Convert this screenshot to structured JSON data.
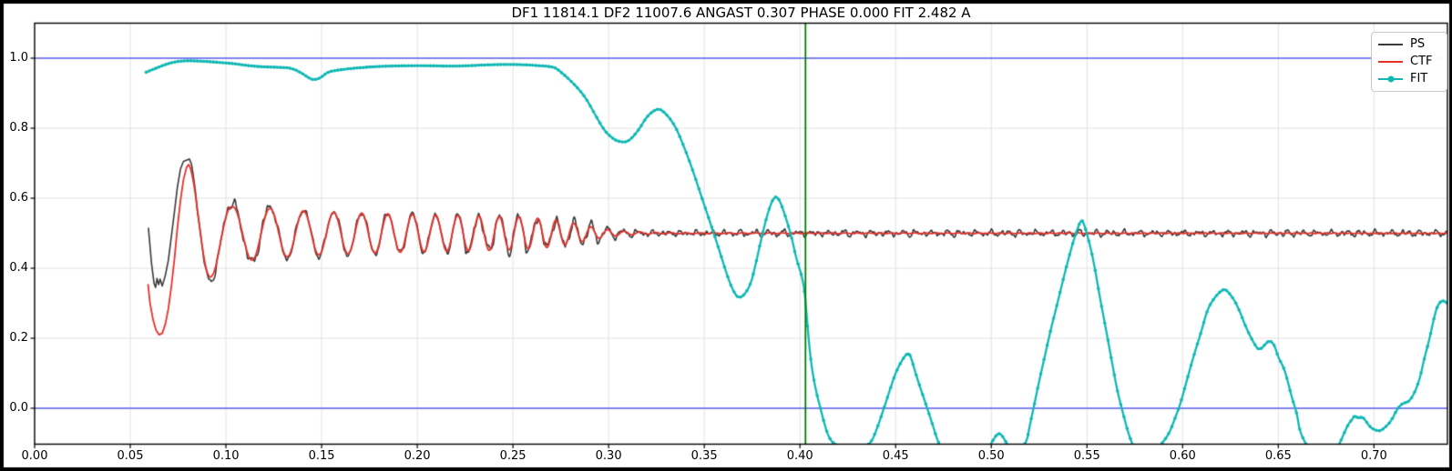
{
  "window": {
    "frame_color": "#000000",
    "background": "#ffffff"
  },
  "legend": {
    "items": [
      {
        "label": "PS",
        "color": "#3b3b3b",
        "marker": false
      },
      {
        "label": "CTF",
        "color": "#e7312a",
        "marker": false
      },
      {
        "label": "FIT",
        "color": "#10b8b4",
        "marker": true
      }
    ]
  },
  "chart_data": {
    "type": "line",
    "title": "DF1 11814.1 DF2 11007.6 ANGAST 0.307 PHASE 0.000 FIT 2.482 A",
    "xlabel": "",
    "ylabel": "",
    "xlim": [
      0,
      0.7384
    ],
    "ylim": [
      -0.1026,
      1.1
    ],
    "grid": true,
    "grid_color": "#e2e2e2",
    "legend_position": "upper right",
    "x_ticks": [
      0.0,
      0.05,
      0.1,
      0.15,
      0.2,
      0.25,
      0.3,
      0.35,
      0.4,
      0.45,
      0.5,
      0.55,
      0.6,
      0.65,
      0.7
    ],
    "x_tick_labels": [
      "0.00",
      "0.05",
      "0.10",
      "0.15",
      "0.20",
      "0.25",
      "0.30",
      "0.35",
      "0.40",
      "0.45",
      "0.50",
      "0.55",
      "0.60",
      "0.65",
      "0.70"
    ],
    "y_ticks": [
      0.0,
      0.2,
      0.4,
      0.6,
      0.8,
      1.0
    ],
    "y_tick_labels": [
      "0.0",
      "0.2",
      "0.4",
      "0.6",
      "0.8",
      "1.0"
    ],
    "reference_lines": {
      "horizontal": [
        {
          "y": 0.0,
          "color": "#8282ef",
          "width": 1.8
        },
        {
          "y": 1.0,
          "color": "#8282ef",
          "width": 1.8
        }
      ],
      "vertical": [
        {
          "x": 0.4029,
          "color": "#007c00",
          "width": 1.8
        }
      ]
    },
    "series": [
      {
        "name": "PS",
        "kind": "ctf_model",
        "color": "#3b3b3b",
        "line_width": 1.6,
        "mean": 0.5,
        "phase_coeffs": [
          -12.95,
          73.0,
          1091
        ],
        "model_range": [
          0.0805,
          0.7384
        ],
        "start_points": [
          [
            0.0595,
            0.514
          ],
          [
            0.0611,
            0.414
          ],
          [
            0.0624,
            0.358
          ],
          [
            0.0632,
            0.345
          ],
          [
            0.064,
            0.371
          ],
          [
            0.0648,
            0.353
          ],
          [
            0.0656,
            0.369
          ],
          [
            0.0667,
            0.349
          ],
          [
            0.0683,
            0.379
          ],
          [
            0.0699,
            0.423
          ],
          [
            0.0715,
            0.492
          ],
          [
            0.0731,
            0.562
          ],
          [
            0.0746,
            0.631
          ],
          [
            0.0762,
            0.683
          ],
          [
            0.0778,
            0.705
          ],
          [
            0.0805,
            0.711
          ]
        ],
        "envelope": [
          [
            0.0805,
            0.211
          ],
          [
            0.0929,
            0.133
          ],
          [
            0.103,
            0.084
          ],
          [
            0.115,
            0.083
          ],
          [
            0.1235,
            0.076
          ],
          [
            0.14,
            0.067
          ],
          [
            0.16,
            0.062
          ],
          [
            0.18,
            0.058
          ],
          [
            0.2,
            0.055
          ],
          [
            0.22,
            0.053
          ],
          [
            0.24,
            0.051
          ],
          [
            0.255,
            0.048
          ],
          [
            0.27,
            0.042
          ],
          [
            0.28,
            0.033
          ],
          [
            0.29,
            0.021
          ],
          [
            0.3,
            0.012
          ],
          [
            0.31,
            0.007
          ],
          [
            0.325,
            0.004
          ],
          [
            0.345,
            0.002
          ],
          [
            0.739,
            0.0015
          ]
        ],
        "noise": {
          "base": 0.008,
          "boosts": [
            [
              0.095,
              0.125,
              0.013
            ],
            [
              0.225,
              0.295,
              0.014
            ]
          ],
          "components": [
            [
              812,
              4.1,
              1.0
            ],
            [
              1382,
              0.9,
              0.75
            ],
            [
              2160,
              2.5,
              0.55
            ],
            [
              3365,
              1.3,
              0.4
            ],
            [
              5230,
              0.2,
              0.22
            ]
          ]
        }
      },
      {
        "name": "CTF",
        "kind": "ctf_model",
        "color": "#e7312a",
        "line_width": 1.8,
        "mean": 0.5,
        "phase_coeffs": [
          -12.95,
          73.0,
          1091
        ],
        "model_range": [
          0.0805,
          0.7384
        ],
        "start_points": [
          [
            0.0593,
            0.353
          ],
          [
            0.0603,
            0.301
          ],
          [
            0.0619,
            0.253
          ],
          [
            0.0635,
            0.223
          ],
          [
            0.0651,
            0.21
          ],
          [
            0.0667,
            0.214
          ],
          [
            0.0683,
            0.24
          ],
          [
            0.0699,
            0.284
          ],
          [
            0.0715,
            0.349
          ],
          [
            0.0731,
            0.427
          ],
          [
            0.0746,
            0.514
          ],
          [
            0.0762,
            0.592
          ],
          [
            0.0778,
            0.653
          ],
          [
            0.0794,
            0.688
          ],
          [
            0.0805,
            0.696
          ]
        ],
        "envelope": [
          [
            0.0805,
            0.196
          ],
          [
            0.0929,
            0.121
          ],
          [
            0.103,
            0.076
          ],
          [
            0.115,
            0.077
          ],
          [
            0.1235,
            0.071
          ],
          [
            0.14,
            0.064
          ],
          [
            0.16,
            0.059
          ],
          [
            0.18,
            0.056
          ],
          [
            0.2,
            0.053
          ],
          [
            0.22,
            0.051
          ],
          [
            0.24,
            0.049
          ],
          [
            0.255,
            0.046
          ],
          [
            0.27,
            0.04
          ],
          [
            0.28,
            0.031
          ],
          [
            0.29,
            0.019
          ],
          [
            0.3,
            0.01
          ],
          [
            0.31,
            0.005
          ],
          [
            0.325,
            0.002
          ],
          [
            0.345,
            0.001
          ],
          [
            0.739,
            0.0008
          ]
        ],
        "noise": null
      },
      {
        "name": "FIT",
        "kind": "points",
        "color": "#10b8b4",
        "line_width": 2.3,
        "marker_radius": 1.8,
        "marker_dx": 0.00167,
        "points": [
          [
            0.0583,
            0.96
          ],
          [
            0.0615,
            0.967
          ],
          [
            0.0655,
            0.976
          ],
          [
            0.07,
            0.985
          ],
          [
            0.0747,
            0.991
          ],
          [
            0.08,
            0.993
          ],
          [
            0.0894,
            0.991
          ],
          [
            0.0985,
            0.987
          ],
          [
            0.1049,
            0.984
          ],
          [
            0.1153,
            0.976
          ],
          [
            0.1274,
            0.974
          ],
          [
            0.1343,
            0.972
          ],
          [
            0.1395,
            0.958
          ],
          [
            0.144,
            0.941
          ],
          [
            0.1465,
            0.938
          ],
          [
            0.1498,
            0.945
          ],
          [
            0.1532,
            0.961
          ],
          [
            0.1585,
            0.966
          ],
          [
            0.1643,
            0.97
          ],
          [
            0.177,
            0.976
          ],
          [
            0.1898,
            0.978
          ],
          [
            0.2016,
            0.979
          ],
          [
            0.21,
            0.978
          ],
          [
            0.2189,
            0.977
          ],
          [
            0.229,
            0.979
          ],
          [
            0.2362,
            0.981
          ],
          [
            0.243,
            0.982
          ],
          [
            0.2534,
            0.982
          ],
          [
            0.26,
            0.98
          ],
          [
            0.2655,
            0.978
          ],
          [
            0.2711,
            0.975
          ],
          [
            0.2735,
            0.968
          ],
          [
            0.2806,
            0.934
          ],
          [
            0.2877,
            0.891
          ],
          [
            0.2933,
            0.835
          ],
          [
            0.298,
            0.791
          ],
          [
            0.3027,
            0.768
          ],
          [
            0.306,
            0.761
          ],
          [
            0.31,
            0.76
          ],
          [
            0.3153,
            0.791
          ],
          [
            0.3201,
            0.835
          ],
          [
            0.3248,
            0.855
          ],
          [
            0.328,
            0.853
          ],
          [
            0.3343,
            0.813
          ],
          [
            0.339,
            0.753
          ],
          [
            0.3438,
            0.683
          ],
          [
            0.3485,
            0.605
          ],
          [
            0.3533,
            0.527
          ],
          [
            0.358,
            0.449
          ],
          [
            0.3612,
            0.392
          ],
          [
            0.3643,
            0.344
          ],
          [
            0.3682,
            0.308
          ],
          [
            0.3738,
            0.344
          ],
          [
            0.377,
            0.414
          ],
          [
            0.3801,
            0.492
          ],
          [
            0.3833,
            0.561
          ],
          [
            0.3864,
            0.605
          ],
          [
            0.389,
            0.601
          ],
          [
            0.3927,
            0.544
          ],
          [
            0.3959,
            0.483
          ],
          [
            0.3983,
            0.422
          ],
          [
            0.4021,
            0.36
          ],
          [
            0.404,
            0.232
          ],
          [
            0.4056,
            0.136
          ],
          [
            0.408,
            0.058
          ],
          [
            0.4104,
            0.006
          ],
          [
            0.4127,
            -0.042
          ],
          [
            0.4143,
            -0.072
          ],
          [
            0.4167,
            -0.098
          ],
          [
            0.422,
            -0.113
          ],
          [
            0.428,
            -0.117
          ],
          [
            0.434,
            -0.108
          ],
          [
            0.4373,
            -0.098
          ],
          [
            0.4405,
            -0.055
          ],
          [
            0.4437,
            -0.003
          ],
          [
            0.4468,
            0.049
          ],
          [
            0.45,
            0.102
          ],
          [
            0.4532,
            0.136
          ],
          [
            0.4556,
            0.155
          ],
          [
            0.4575,
            0.157
          ],
          [
            0.4603,
            0.102
          ],
          [
            0.4635,
            0.049
          ],
          [
            0.4667,
            -0.003
          ],
          [
            0.4698,
            -0.055
          ],
          [
            0.4722,
            -0.098
          ],
          [
            0.476,
            -0.13
          ],
          [
            0.482,
            -0.15
          ],
          [
            0.49,
            -0.155
          ],
          [
            0.497,
            -0.13
          ],
          [
            0.5024,
            -0.076
          ],
          [
            0.5048,
            -0.07
          ],
          [
            0.508,
            -0.1
          ],
          [
            0.512,
            -0.13
          ],
          [
            0.5183,
            -0.102
          ],
          [
            0.5199,
            -0.055
          ],
          [
            0.5223,
            0.006
          ],
          [
            0.5246,
            0.067
          ],
          [
            0.5278,
            0.145
          ],
          [
            0.531,
            0.223
          ],
          [
            0.5342,
            0.292
          ],
          [
            0.5373,
            0.362
          ],
          [
            0.5405,
            0.431
          ],
          [
            0.5437,
            0.492
          ],
          [
            0.5465,
            0.535
          ],
          [
            0.548,
            0.537
          ],
          [
            0.5516,
            0.466
          ],
          [
            0.554,
            0.405
          ],
          [
            0.5564,
            0.327
          ],
          [
            0.5588,
            0.258
          ],
          [
            0.5612,
            0.188
          ],
          [
            0.5635,
            0.119
          ],
          [
            0.5659,
            0.049
          ],
          [
            0.5683,
            -0.003
          ],
          [
            0.572,
            -0.08
          ],
          [
            0.576,
            -0.13
          ],
          [
            0.582,
            -0.15
          ],
          [
            0.589,
            -0.102
          ],
          [
            0.593,
            -0.072
          ],
          [
            0.596,
            -0.029
          ],
          [
            0.599,
            0.015
          ],
          [
            0.602,
            0.076
          ],
          [
            0.606,
            0.154
          ],
          [
            0.61,
            0.223
          ],
          [
            0.613,
            0.284
          ],
          [
            0.617,
            0.319
          ],
          [
            0.621,
            0.34
          ],
          [
            0.623,
            0.338
          ],
          [
            0.627,
            0.31
          ],
          [
            0.63,
            0.275
          ],
          [
            0.633,
            0.232
          ],
          [
            0.637,
            0.188
          ],
          [
            0.64,
            0.163
          ],
          [
            0.644,
            0.188
          ],
          [
            0.6454,
            0.193
          ],
          [
            0.6478,
            0.184
          ],
          [
            0.65,
            0.145
          ],
          [
            0.653,
            0.115
          ],
          [
            0.655,
            0.076
          ],
          [
            0.657,
            0.032
          ],
          [
            0.66,
            -0.02
          ],
          [
            0.661,
            -0.063
          ],
          [
            0.665,
            -0.11
          ],
          [
            0.67,
            -0.14
          ],
          [
            0.676,
            -0.15
          ],
          [
            0.682,
            -0.102
          ],
          [
            0.684,
            -0.076
          ],
          [
            0.6865,
            -0.046
          ],
          [
            0.689,
            -0.029
          ],
          [
            0.69,
            -0.02
          ],
          [
            0.692,
            -0.03
          ],
          [
            0.694,
            -0.022
          ],
          [
            0.698,
            -0.055
          ],
          [
            0.701,
            -0.063
          ],
          [
            0.703,
            -0.065
          ],
          [
            0.705,
            -0.059
          ],
          [
            0.709,
            -0.037
          ],
          [
            0.712,
            -0.003
          ],
          [
            0.715,
            0.015
          ],
          [
            0.718,
            0.017
          ],
          [
            0.721,
            0.041
          ],
          [
            0.724,
            0.084
          ],
          [
            0.726,
            0.136
          ],
          [
            0.729,
            0.197
          ],
          [
            0.731,
            0.249
          ],
          [
            0.733,
            0.292
          ],
          [
            0.7357,
            0.31
          ],
          [
            0.7384,
            0.3
          ]
        ]
      }
    ]
  }
}
